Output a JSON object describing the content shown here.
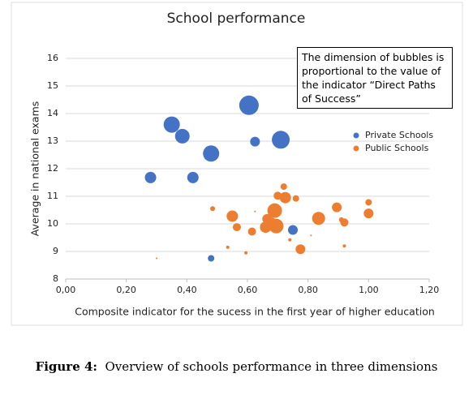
{
  "chart_data": {
    "type": "bubble",
    "title": "School performance",
    "xlabel": "Composite indicator for the sucess in the first year of higher education",
    "ylabel": "Average in national exams",
    "annotation": "The dimension of bubbles is proportional to the value of the indicator “Direct Paths of Success”",
    "xlim": [
      0,
      1.2
    ],
    "xticks": [
      {
        "value": 0,
        "label": "0,00"
      },
      {
        "value": 0.2,
        "label": "0,20"
      },
      {
        "value": 0.4,
        "label": "0,40"
      },
      {
        "value": 0.6,
        "label": "0,60"
      },
      {
        "value": 0.8,
        "label": "0,80"
      },
      {
        "value": 1,
        "label": "1,00"
      },
      {
        "value": 1.2,
        "label": "1,20"
      }
    ],
    "ylim": [
      8,
      16
    ],
    "yticks": [
      8,
      9,
      10,
      11,
      12,
      13,
      14,
      15,
      16
    ],
    "grid": true,
    "series": [
      {
        "name": "Private Schools",
        "color": "#4472c4",
        "x": [
          0.28,
          0.35,
          0.385,
          0.42,
          0.48,
          0.605,
          0.625,
          0.71,
          0.48,
          0.75
        ],
        "values": [
          11.68,
          13.6,
          13.18,
          11.68,
          12.55,
          14.3,
          12.98,
          13.05,
          8.75,
          9.78
        ],
        "sizes": [
          7,
          10,
          9,
          7,
          10,
          12,
          6,
          11,
          4,
          6
        ]
      },
      {
        "name": "Public Schools",
        "color": "#ed7d31",
        "x": [
          0.3,
          0.485,
          0.535,
          0.55,
          0.565,
          0.595,
          0.615,
          0.625,
          0.66,
          0.665,
          0.68,
          0.69,
          0.695,
          0.7,
          0.72,
          0.725,
          0.74,
          0.76,
          0.775,
          0.81,
          0.835,
          0.895,
          0.91,
          0.92,
          0.92,
          1.0,
          1.0
        ],
        "values": [
          8.75,
          10.55,
          9.15,
          10.28,
          9.88,
          8.95,
          9.72,
          10.45,
          9.88,
          10.18,
          10.05,
          10.48,
          9.92,
          11.02,
          11.35,
          10.95,
          9.42,
          10.92,
          9.08,
          9.58,
          10.2,
          10.6,
          10.15,
          10.05,
          9.2,
          10.78,
          10.38
        ],
        "sizes": [
          1,
          3,
          2,
          7,
          5,
          2,
          5,
          1,
          7,
          6,
          6,
          9,
          9,
          5,
          4,
          7,
          2,
          4,
          6,
          1,
          8,
          6,
          3,
          5,
          2,
          4,
          6
        ]
      }
    ]
  },
  "caption": {
    "label": "Figure 4:",
    "text": "Overview of schools performance in three dimensions"
  }
}
